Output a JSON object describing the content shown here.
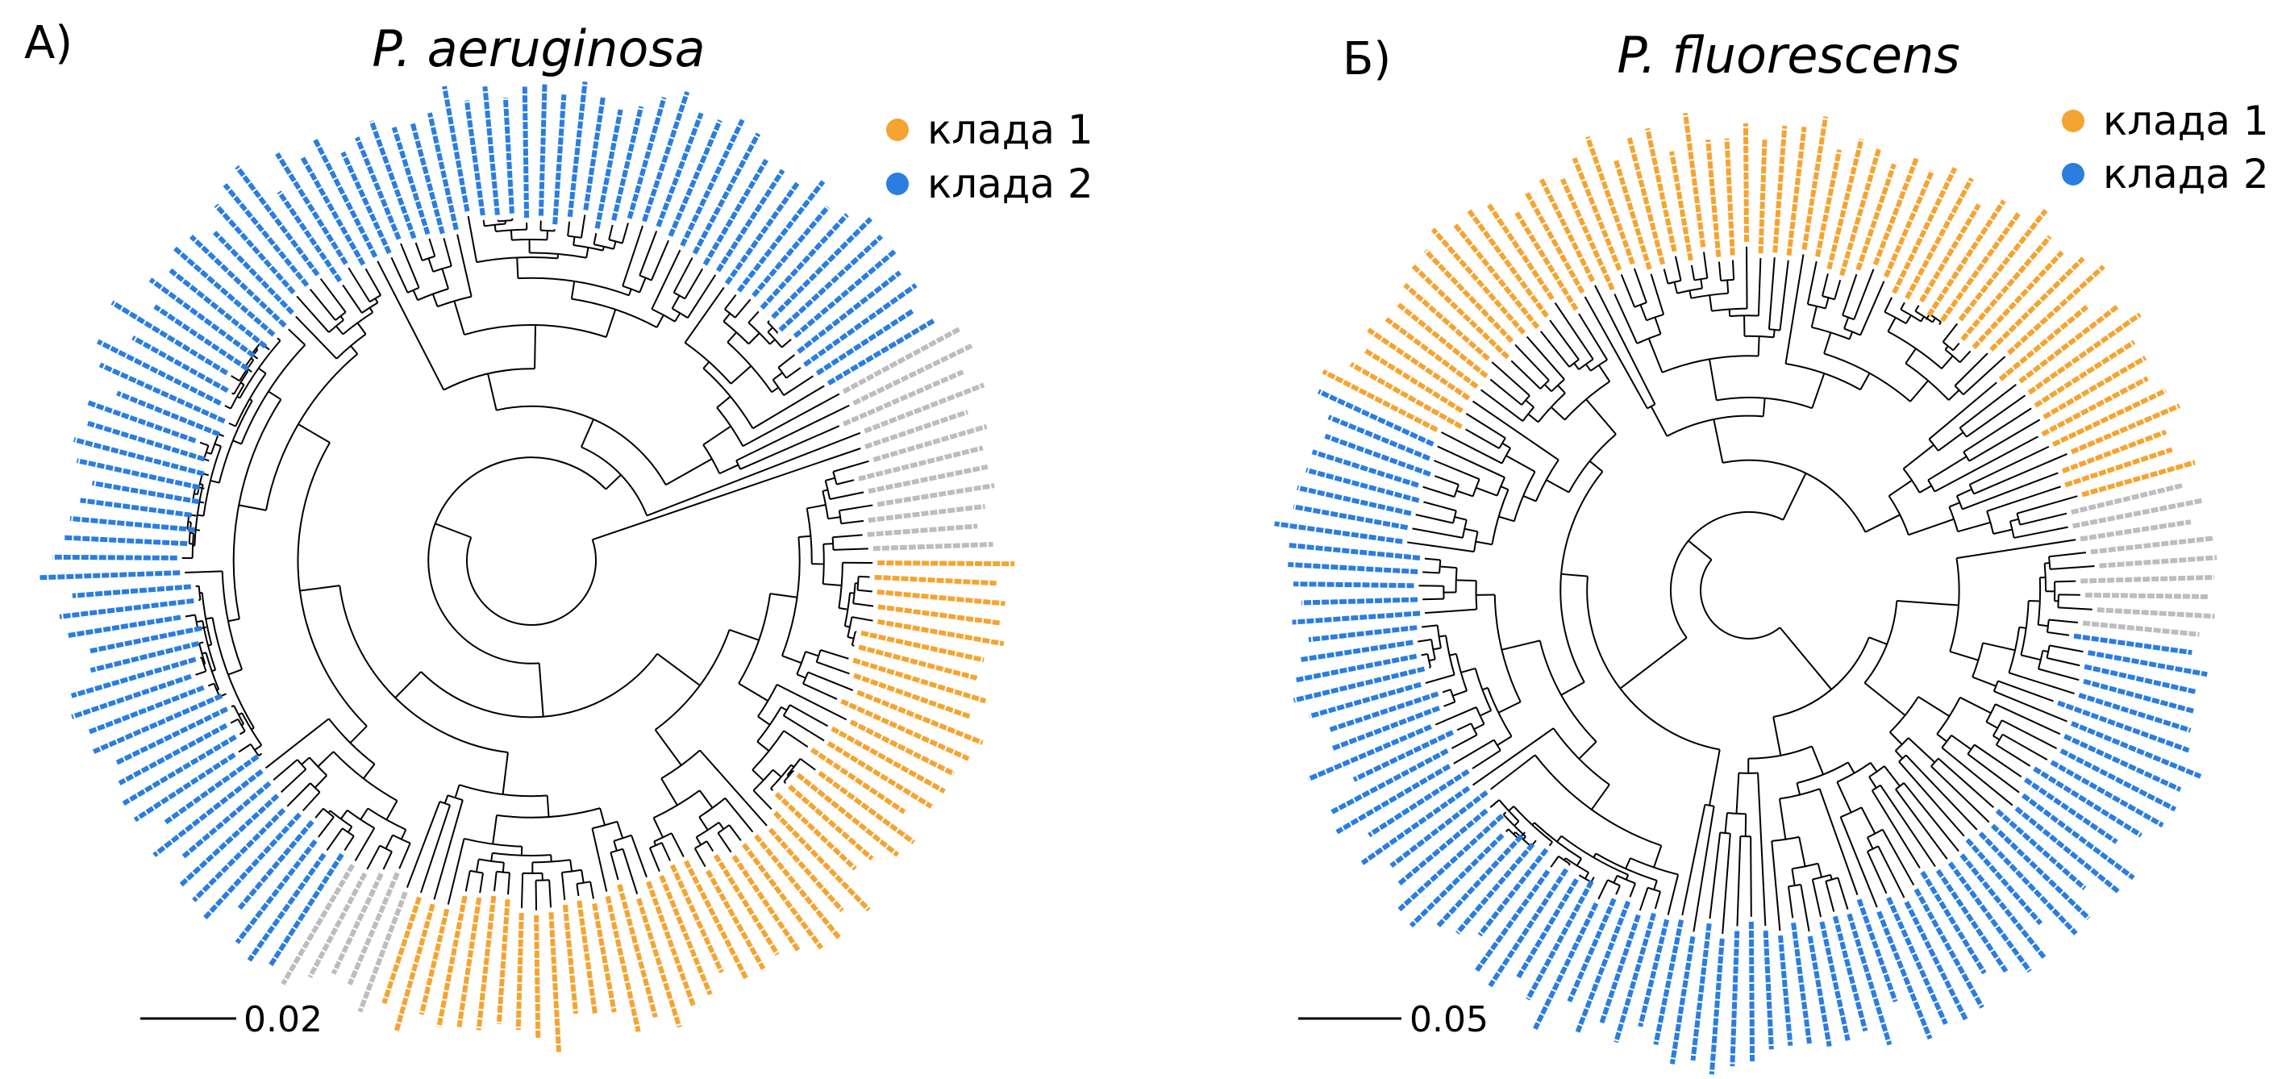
{
  "panels": [
    {
      "label": "А)",
      "title": "P. aeruginosa",
      "scale_bar": "0.02",
      "legend": [
        {
          "name": "клада 1",
          "color": "#f5a431"
        },
        {
          "name": "клада 2",
          "color": "#2a7de1"
        }
      ]
    },
    {
      "label": "Б)",
      "title": "P. fluorescens",
      "scale_bar": "0.05",
      "legend": [
        {
          "name": "клада 1",
          "color": "#f5a431"
        },
        {
          "name": "клада 2",
          "color": "#2a7de1"
        }
      ]
    }
  ]
}
